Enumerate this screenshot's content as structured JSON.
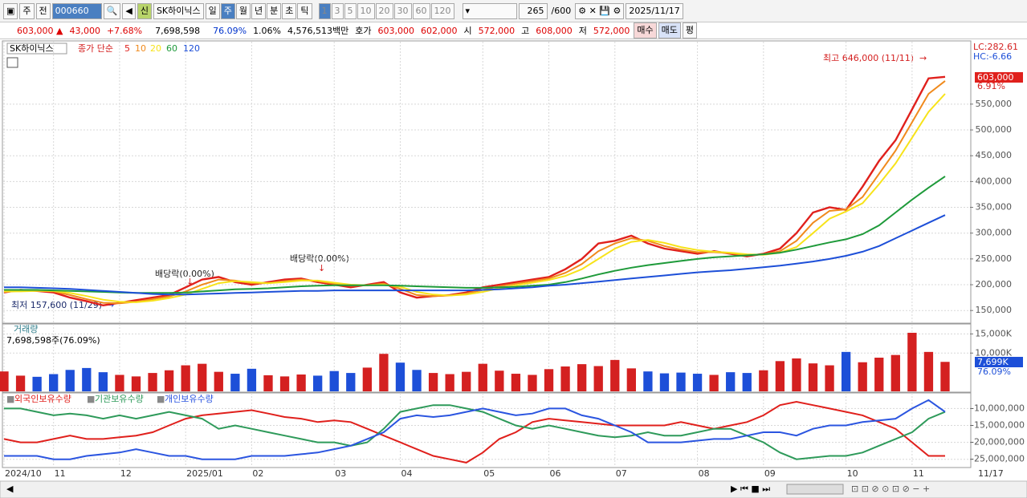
{
  "toolbar": {
    "period": "주",
    "prev": "전",
    "code": "000660",
    "name": "SK하이닉스",
    "new": "신",
    "units": [
      "일",
      "주",
      "월",
      "년",
      "분",
      "초",
      "틱"
    ],
    "intervals": [
      "1",
      "3",
      "5",
      "10",
      "20",
      "30",
      "60",
      "120"
    ],
    "count": "265",
    "count_max": "/600",
    "date": "2025/11/17"
  },
  "infobar": {
    "price": "603,000 ▲",
    "change": "43,000",
    "change_pct": "+7.68%",
    "volume": "7,698,598",
    "volume_ratio": "76.09%",
    "turnover": "1.06%",
    "amount": "4,576,513백만",
    "quote_label": "호가",
    "ask": "603,000",
    "bid": "602,000",
    "open_label": "시",
    "open": "572,000",
    "high_label": "고",
    "high": "608,000",
    "low_label": "저",
    "low": "572,000",
    "buy": "매수",
    "sell": "매도",
    "eval": "평"
  },
  "chart_data": [
    {
      "type": "line",
      "title": "SK하이닉스",
      "subtitle": "종가 단순",
      "lc": "LC:282.61",
      "hc": "HC:-6.66",
      "current_label": "603,000",
      "current_change": "6.91%",
      "annotations": [
        "최고 646,000 (11/11)",
        "최저 157,600 (11/29)",
        "배당락(0.00%)",
        "배당락(0.00%)"
      ],
      "ylim": [
        127000,
        671000
      ],
      "grid": true,
      "yticks": [
        {
          "value": 150000,
          "label": "150,000"
        },
        {
          "value": 200000,
          "label": "200,000"
        },
        {
          "value": 250000,
          "label": "250,000"
        },
        {
          "value": 300000,
          "label": "300,000"
        },
        {
          "value": 350000,
          "label": "350,000"
        },
        {
          "value": 400000,
          "label": "400,000"
        },
        {
          "value": 450000,
          "label": "450,000"
        },
        {
          "value": 500000,
          "label": "500,000"
        },
        {
          "value": 550000,
          "label": "550,000"
        }
      ],
      "series": [
        {
          "name": "5",
          "color": "#e0201c",
          "values": [
            185000,
            190000,
            188000,
            185000,
            175000,
            168000,
            160000,
            165000,
            170000,
            175000,
            180000,
            195000,
            210000,
            215000,
            205000,
            200000,
            205000,
            210000,
            212000,
            205000,
            200000,
            195000,
            200000,
            205000,
            185000,
            175000,
            178000,
            180000,
            185000,
            195000,
            200000,
            205000,
            210000,
            215000,
            230000,
            250000,
            280000,
            285000,
            295000,
            280000,
            270000,
            265000,
            260000,
            265000,
            260000,
            255000,
            260000,
            270000,
            300000,
            340000,
            350000,
            345000,
            390000,
            440000,
            480000,
            540000,
            600000,
            603000
          ]
        },
        {
          "name": "10",
          "color": "#f08a1c",
          "values": [
            186000,
            188000,
            189000,
            187000,
            180000,
            172000,
            165000,
            164000,
            167000,
            172000,
            177000,
            187000,
            200000,
            210000,
            208000,
            203000,
            203000,
            207000,
            210000,
            207000,
            202000,
            198000,
            199000,
            202000,
            192000,
            180000,
            178000,
            179000,
            183000,
            190000,
            197000,
            202000,
            207000,
            212000,
            223000,
            240000,
            265000,
            280000,
            290000,
            285000,
            275000,
            268000,
            263000,
            263000,
            261000,
            257000,
            259000,
            265000,
            285000,
            320000,
            343000,
            346000,
            370000,
            415000,
            460000,
            515000,
            570000,
            595000
          ]
        },
        {
          "name": "20",
          "color": "#f7e31a",
          "values": [
            187000,
            187000,
            188000,
            188000,
            184000,
            178000,
            171000,
            167000,
            166000,
            169000,
            174000,
            181000,
            192000,
            203000,
            207000,
            205000,
            203000,
            205000,
            208000,
            208000,
            204000,
            200000,
            199000,
            200000,
            196000,
            186000,
            181000,
            179000,
            181000,
            186000,
            193000,
            199000,
            204000,
            209000,
            217000,
            230000,
            250000,
            270000,
            283000,
            287000,
            281000,
            273000,
            267000,
            264000,
            262000,
            259000,
            258000,
            262000,
            273000,
            300000,
            328000,
            342000,
            358000,
            395000,
            435000,
            485000,
            535000,
            570000
          ]
        },
        {
          "name": "60",
          "color": "#1e9a3a",
          "values": [
            190000,
            190000,
            190000,
            189000,
            188000,
            187000,
            186000,
            185000,
            184000,
            184000,
            184000,
            185000,
            187000,
            189000,
            191000,
            192000,
            193000,
            195000,
            197000,
            198000,
            199000,
            199000,
            199000,
            199000,
            198000,
            197000,
            196000,
            195000,
            194000,
            194000,
            195000,
            196000,
            198000,
            200000,
            205000,
            212000,
            220000,
            227000,
            233000,
            238000,
            242000,
            246000,
            250000,
            253000,
            255000,
            257000,
            259000,
            262000,
            268000,
            275000,
            282000,
            288000,
            298000,
            315000,
            340000,
            365000,
            388000,
            410000
          ]
        },
        {
          "name": "120",
          "color": "#1d4fd8",
          "values": [
            195000,
            195000,
            194000,
            193000,
            192000,
            190000,
            188000,
            186000,
            184000,
            182000,
            181000,
            181000,
            182000,
            183000,
            184000,
            185000,
            186000,
            187000,
            188000,
            188000,
            189000,
            189000,
            189000,
            189000,
            189000,
            189000,
            189000,
            189000,
            189000,
            190000,
            191000,
            193000,
            195000,
            198000,
            200000,
            203000,
            206000,
            209000,
            212000,
            215000,
            218000,
            221000,
            224000,
            226000,
            228000,
            231000,
            234000,
            237000,
            241000,
            245000,
            250000,
            256000,
            264000,
            275000,
            290000,
            305000,
            320000,
            335000
          ]
        }
      ]
    },
    {
      "type": "bar",
      "title": "거래량",
      "subtitle": "7,698,598주(76.09%)",
      "current_label": "7,699K",
      "current_ratio": "76.09%",
      "color_up": "#d42020",
      "color_down": "#1d4fd8",
      "ylim": [
        0,
        17600000
      ],
      "grid": true,
      "yticks": [
        {
          "value": 10000000,
          "label": "10,000K"
        },
        {
          "value": 15000000,
          "label": "15,000K"
        }
      ],
      "values": [
        5200000,
        4100000,
        3800000,
        4500000,
        5600000,
        6100000,
        5000000,
        4300000,
        3900000,
        4800000,
        5500000,
        6800000,
        7200000,
        5100000,
        4600000,
        5900000,
        4200000,
        3900000,
        4400000,
        4100000,
        5300000,
        4800000,
        6200000,
        9800000,
        7500000,
        5600000,
        4800000,
        4500000,
        5100000,
        7200000,
        5400000,
        4600000,
        4300000,
        5800000,
        6500000,
        7100000,
        6600000,
        8200000,
        6000000,
        5200000,
        4700000,
        4900000,
        4600000,
        4300000,
        5000000,
        4800000,
        5500000,
        7900000,
        8600000,
        7300000,
        6800000,
        10300000,
        7600000,
        8800000,
        9500000,
        15300000,
        10300000,
        7698598
      ]
    },
    {
      "type": "line",
      "ylim": [
        -27200000,
        -5400000
      ],
      "grid": true,
      "yticks": [
        {
          "value": -10000000,
          "label": "-10,000,000"
        },
        {
          "value": -15000000,
          "label": "-15,000,000"
        },
        {
          "value": -20000000,
          "label": "-20,000,000"
        },
        {
          "value": -25000000,
          "label": "-25,000,000"
        }
      ],
      "categories": [
        "2024/10",
        null,
        null,
        "11",
        null,
        null,
        null,
        "12",
        null,
        null,
        null,
        "2025/01",
        null,
        null,
        null,
        "02",
        null,
        null,
        null,
        null,
        "03",
        null,
        null,
        null,
        "04",
        null,
        null,
        null,
        null,
        "05",
        null,
        null,
        null,
        "06",
        null,
        null,
        null,
        "07",
        null,
        null,
        null,
        null,
        "08",
        null,
        null,
        null,
        "09",
        null,
        null,
        null,
        null,
        "10",
        null,
        null,
        null,
        "11",
        null,
        null
      ],
      "cursor_date": "11/17",
      "series": [
        {
          "name": "외국인보유수량",
          "color": "#e0201c",
          "values": [
            -19000000,
            -20000000,
            -20000000,
            -19000000,
            -18000000,
            -19000000,
            -19000000,
            -18500000,
            -18000000,
            -17000000,
            -15000000,
            -13000000,
            -12000000,
            -11500000,
            -11000000,
            -10500000,
            -11500000,
            -12500000,
            -13000000,
            -14000000,
            -13500000,
            -14000000,
            -16000000,
            -18000000,
            -20000000,
            -22000000,
            -24000000,
            -25000000,
            -26000000,
            -23000000,
            -19000000,
            -17000000,
            -14000000,
            -13000000,
            -13500000,
            -14000000,
            -14500000,
            -15000000,
            -15000000,
            -15000000,
            -15000000,
            -14000000,
            -15000000,
            -16000000,
            -15000000,
            -14000000,
            -12000000,
            -9000000,
            -8000000,
            -9000000,
            -10000000,
            -11000000,
            -12000000,
            -14000000,
            -16000000,
            -20000000,
            -24000000,
            -24000000
          ]
        },
        {
          "name": "기관보유수량",
          "color": "#2e9a5a",
          "values": [
            -10000000,
            -10000000,
            -11000000,
            -12000000,
            -11500000,
            -12000000,
            -13000000,
            -12000000,
            -13000000,
            -12000000,
            -11000000,
            -12000000,
            -13000000,
            -16000000,
            -15000000,
            -16000000,
            -17000000,
            -18000000,
            -19000000,
            -20000000,
            -20000000,
            -21000000,
            -20000000,
            -16000000,
            -11000000,
            -10000000,
            -9000000,
            -9000000,
            -10000000,
            -11000000,
            -13000000,
            -15000000,
            -16000000,
            -15000000,
            -16000000,
            -17000000,
            -18000000,
            -18500000,
            -18000000,
            -17000000,
            -18000000,
            -18000000,
            -17000000,
            -16000000,
            -16000000,
            -18000000,
            -20000000,
            -23000000,
            -25000000,
            -24500000,
            -24000000,
            -24000000,
            -23000000,
            -21000000,
            -19000000,
            -17000000,
            -13000000,
            -11000000
          ]
        },
        {
          "name": "개인보유수량",
          "color": "#2b55e0",
          "values": [
            -24000000,
            -24000000,
            -24000000,
            -25000000,
            -25000000,
            -24000000,
            -23500000,
            -23000000,
            -22000000,
            -23000000,
            -24000000,
            -24000000,
            -25000000,
            -25000000,
            -25000000,
            -24000000,
            -24000000,
            -24000000,
            -23500000,
            -23000000,
            -22000000,
            -21000000,
            -19000000,
            -17000000,
            -13000000,
            -12000000,
            -12500000,
            -12000000,
            -11000000,
            -10000000,
            -11000000,
            -12000000,
            -11500000,
            -10000000,
            -10000000,
            -12000000,
            -13000000,
            -15000000,
            -17000000,
            -20000000,
            -20000000,
            -20000000,
            -19500000,
            -19000000,
            -19000000,
            -18000000,
            -17000000,
            -17000000,
            -18000000,
            -16000000,
            -15000000,
            -15000000,
            -14000000,
            -13500000,
            -13000000,
            -10000000,
            -7500000,
            -11000000
          ]
        }
      ]
    }
  ]
}
